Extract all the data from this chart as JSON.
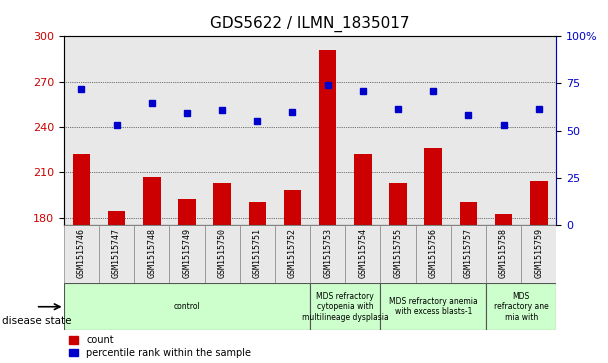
{
  "title": "GDS5622 / ILMN_1835017",
  "samples": [
    "GSM1515746",
    "GSM1515747",
    "GSM1515748",
    "GSM1515749",
    "GSM1515750",
    "GSM1515751",
    "GSM1515752",
    "GSM1515753",
    "GSM1515754",
    "GSM1515755",
    "GSM1515756",
    "GSM1515757",
    "GSM1515758",
    "GSM1515759"
  ],
  "bar_values": [
    222,
    184,
    207,
    192,
    203,
    190,
    198,
    291,
    222,
    203,
    226,
    190,
    182,
    204
  ],
  "dot_values": [
    265,
    241,
    256,
    249,
    251,
    244,
    250,
    268,
    264,
    252,
    264,
    248,
    241,
    252
  ],
  "bar_color": "#cc0000",
  "dot_color": "#0000cc",
  "ylim_left": [
    175,
    300
  ],
  "ylim_right": [
    0,
    100
  ],
  "yticks_left": [
    180,
    210,
    240,
    270,
    300
  ],
  "yticks_right": [
    0,
    25,
    50,
    75,
    100
  ],
  "disease_groups": [
    {
      "label": "control",
      "start": 0,
      "end": 7,
      "color": "#ccffcc"
    },
    {
      "label": "MDS refractory\ncytopenia with\nmultilineage dysplasia",
      "start": 7,
      "end": 9,
      "color": "#ccffcc"
    },
    {
      "label": "MDS refractory anemia\nwith excess blasts-1",
      "start": 9,
      "end": 12,
      "color": "#ccffcc"
    },
    {
      "label": "MDS\nrefractory ane\nmia with",
      "start": 12,
      "end": 14,
      "color": "#ccffcc"
    }
  ],
  "legend_count_label": "count",
  "legend_percentile_label": "percentile rank within the sample",
  "legend_count_color": "#cc0000",
  "legend_percentile_color": "#0000cc",
  "disease_state_label": "disease state",
  "background_color": "#e8e8e8",
  "title_fontsize": 11,
  "tick_fontsize": 8
}
